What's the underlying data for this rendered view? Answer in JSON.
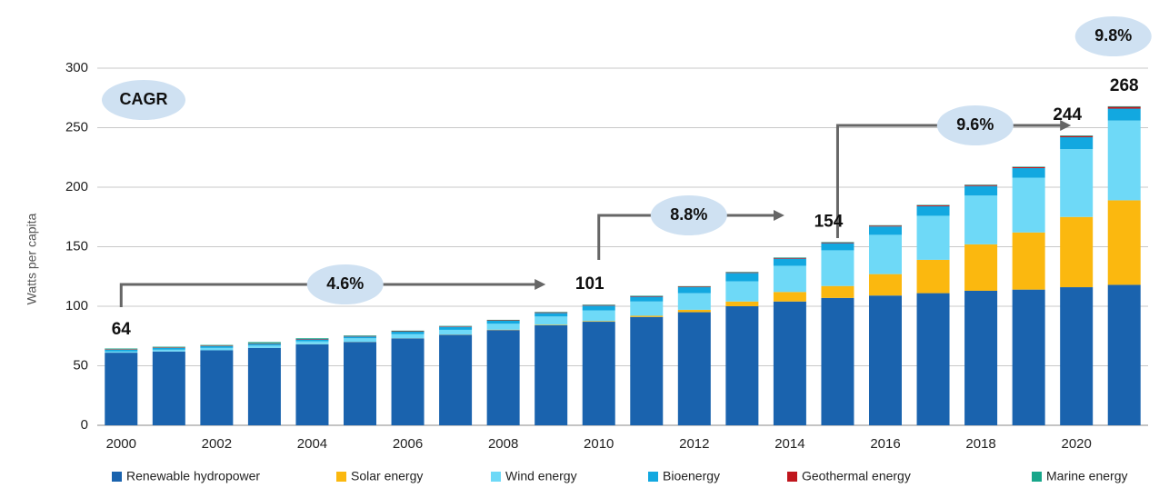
{
  "chart_data": {
    "type": "stacked_bar",
    "y_label": "Watts per capita",
    "categories": [
      "2000",
      null,
      "2002",
      null,
      "2004",
      null,
      "2006",
      null,
      "2008",
      null,
      "2010",
      null,
      "2012",
      null,
      "2014",
      null,
      "2016",
      null,
      "2018",
      null,
      "2020",
      null
    ],
    "series": [
      {
        "name": "Renewable hydropower",
        "color": "#1a63ae",
        "values": [
          61,
          62,
          63,
          65,
          68,
          70,
          73,
          76,
          80,
          84,
          87,
          91,
          95,
          100,
          104,
          107,
          109,
          111,
          113,
          114,
          116,
          118
        ]
      },
      {
        "name": "Solar energy",
        "color": "#fbb80f",
        "values": [
          0,
          0,
          0,
          0,
          0.1,
          0.1,
          0.1,
          0.2,
          0.3,
          0.4,
          0.5,
          1,
          2,
          4,
          8,
          10,
          18,
          28,
          39,
          48,
          59,
          71
        ]
      },
      {
        "name": "Wind energy",
        "color": "#6ed9f7",
        "values": [
          1,
          1.5,
          2,
          2,
          2.5,
          3,
          3.5,
          4,
          5,
          7,
          9,
          12,
          14,
          17,
          22,
          30,
          33,
          37,
          41,
          46,
          57,
          67
        ]
      },
      {
        "name": "Bioenergy",
        "color": "#12a8e0",
        "values": [
          1.5,
          1.5,
          1.5,
          1.5,
          1.5,
          1.5,
          2,
          2.5,
          2.5,
          3,
          4,
          4,
          5,
          7,
          6,
          6,
          7,
          8,
          8,
          8,
          10,
          10
        ]
      },
      {
        "name": "Geothermal energy",
        "color": "#c0161d",
        "values": [
          0.4,
          0.4,
          0.4,
          0.4,
          0.4,
          0.4,
          0.4,
          0.4,
          0.4,
          0.5,
          0.5,
          0.5,
          0.5,
          0.5,
          0.6,
          0.6,
          0.7,
          0.8,
          0.8,
          0.9,
          1,
          1.5
        ]
      },
      {
        "name": "Marine energy",
        "color": "#17a68a",
        "values": [
          0.6,
          0.6,
          0.6,
          1,
          0.6,
          0.5,
          0.5,
          0.4,
          0.4,
          0.4,
          0.4,
          0.4,
          0.4,
          0.4,
          0.4,
          0.4,
          0.4,
          0.4,
          0.4,
          0.4,
          0.5,
          0.5
        ]
      }
    ],
    "totals": [
      64,
      null,
      null,
      null,
      null,
      null,
      null,
      null,
      null,
      null,
      101,
      null,
      null,
      null,
      null,
      154,
      null,
      null,
      null,
      null,
      244,
      268
    ],
    "cagr_title": "CAGR",
    "cagr_labels": [
      "4.6%",
      "8.8%",
      "9.6%",
      "9.8%"
    ],
    "ylim": [
      0,
      300
    ],
    "yticks": [
      0,
      50,
      100,
      150,
      200,
      250,
      300
    ],
    "grid": true
  }
}
